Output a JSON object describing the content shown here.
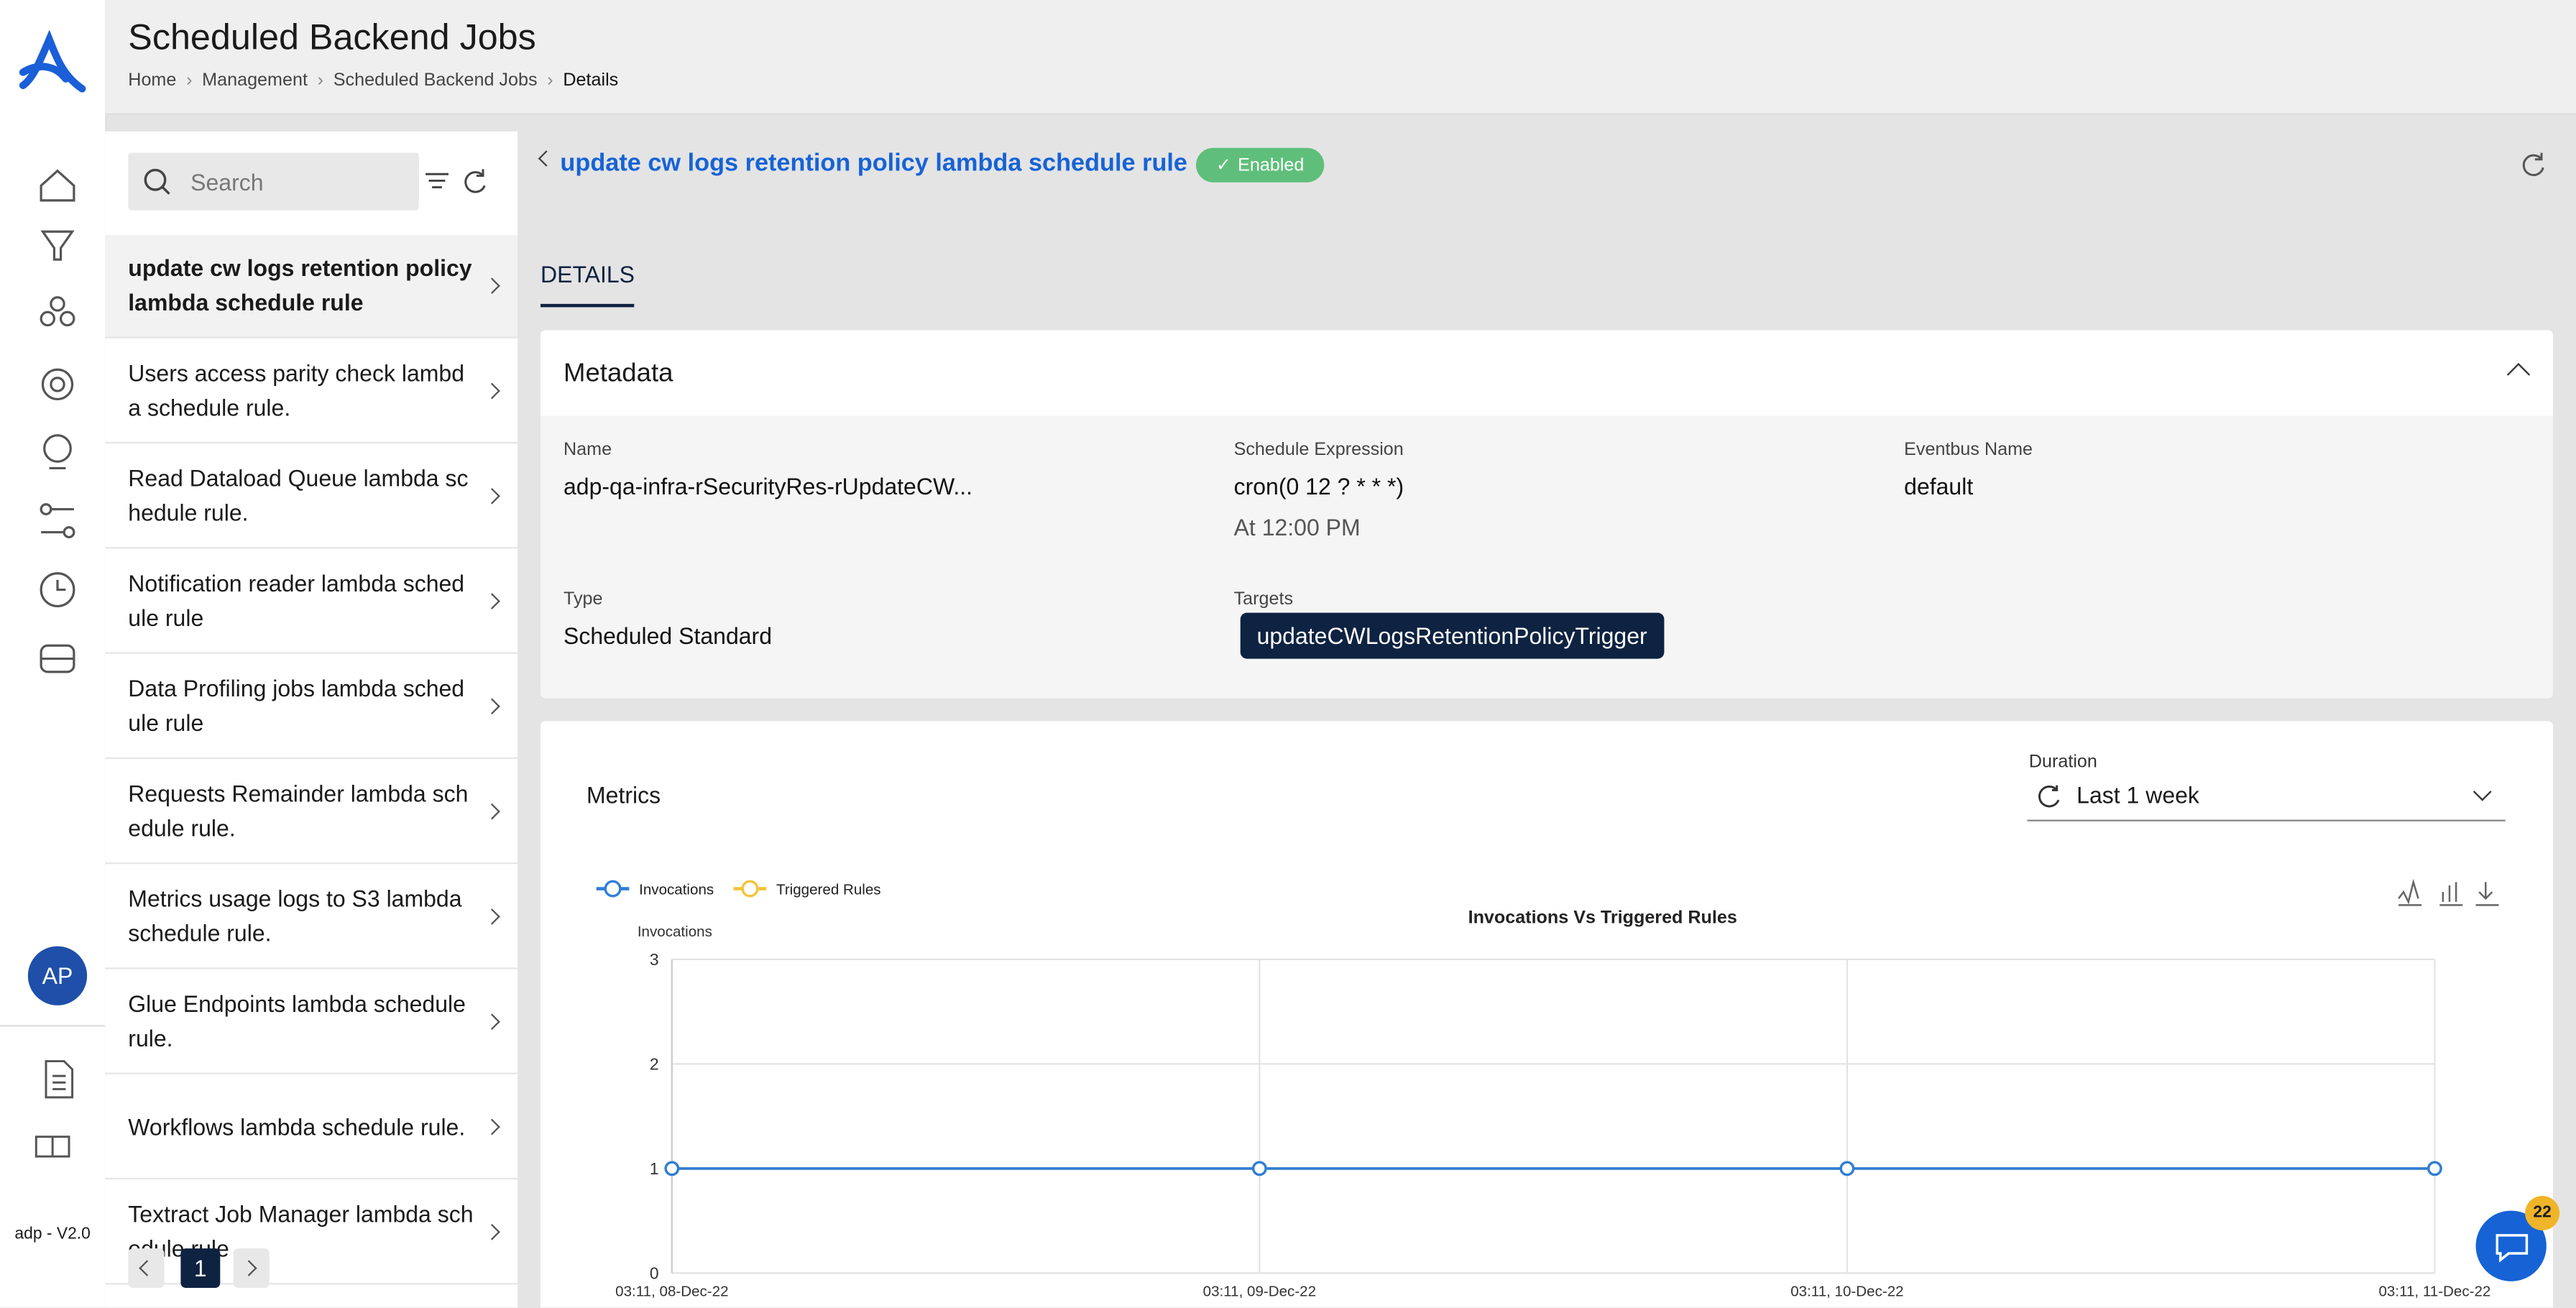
{
  "header": {
    "title": "Scheduled Backend Jobs",
    "breadcrumbs": [
      "Home",
      "Management",
      "Scheduled Backend Jobs",
      "Details"
    ]
  },
  "sidebar": {
    "avatar": "AP",
    "version": "adp - V2.0",
    "help_badge": "22"
  },
  "list": {
    "search_placeholder": "Search",
    "items": [
      "update cw logs retention policy lambda schedule rule",
      "Users access parity check lambda schedule rule.",
      "Read Dataload Queue lambda schedule rule.",
      "Notification reader lambda schedule rule",
      "Data Profiling jobs lambda schedule rule",
      "Requests Remainder lambda schedule rule.",
      "Metrics usage logs to S3 lambda schedule rule.",
      "Glue Endpoints lambda schedule rule.",
      "Workflows lambda schedule rule.",
      "Textract Job Manager lambda schedule rule"
    ],
    "page": "1"
  },
  "detail": {
    "title": "update cw logs retention policy lambda schedule rule",
    "status": "Enabled",
    "tab": "DETAILS"
  },
  "metadata": {
    "title": "Metadata",
    "fields": [
      {
        "label": "Name",
        "value": "adp-qa-infra-rSecurityRes-rUpdateCW..."
      },
      {
        "label": "Schedule Expression",
        "value": "cron(0 12 ? * * *)",
        "note": "At 12:00 PM"
      },
      {
        "label": "Eventbus Name",
        "value": "default"
      },
      {
        "label": "Type",
        "value": "Scheduled Standard"
      },
      {
        "label": "Targets",
        "value": "updateCWLogsRetentionPolicyTrigger"
      }
    ]
  },
  "metrics": {
    "title": "Metrics",
    "duration_label": "Duration",
    "duration": "Last 1 week",
    "chart": {
      "type": "line",
      "title": "Invocations Vs Triggered Rules",
      "y_label": "Invocations",
      "categories": [
        "03:11, 08-Dec-22",
        "03:11, 09-Dec-22",
        "03:11, 10-Dec-22",
        "03:11, 11-Dec-22"
      ],
      "series": [
        {
          "name": "Invocations",
          "color": "#2f7ed8",
          "values": [
            1,
            1,
            1,
            1
          ]
        },
        {
          "name": "Triggered Rules",
          "color": "#f5c33b",
          "values": [
            1,
            1,
            1,
            1
          ]
        }
      ],
      "ylim": [
        0,
        3
      ],
      "yticks": [
        0,
        1,
        2,
        3
      ],
      "grid": true
    }
  }
}
